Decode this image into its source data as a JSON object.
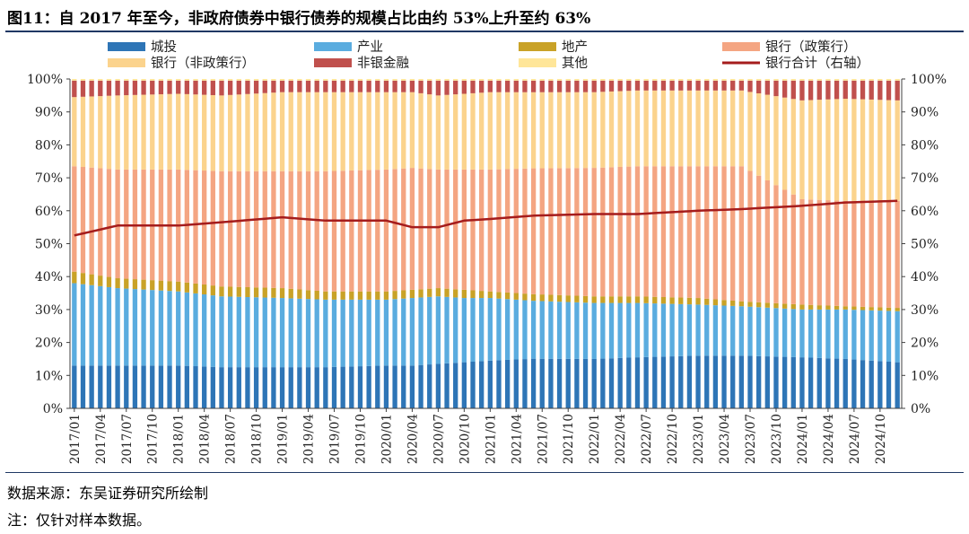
{
  "header": {
    "title": "图11：自 2017 年至今，非政府债券中银行债券的规模占比由约 53%上升至约 63%"
  },
  "footer": {
    "source": "数据来源：东吴证券研究所绘制",
    "note": "注：仅针对样本数据。"
  },
  "chart_data": {
    "type": "bar",
    "stacked": true,
    "x_start": "2017-01",
    "x_end": "2024-12",
    "x_tick_labels": [
      "2017/01",
      "2017/04",
      "2017/07",
      "2017/10",
      "2018/01",
      "2018/04",
      "2018/07",
      "2018/10",
      "2019/01",
      "2019/04",
      "2019/07",
      "2019/10",
      "2020/01",
      "2020/04",
      "2020/07",
      "2020/10",
      "2021/01",
      "2021/04",
      "2021/07",
      "2021/10",
      "2022/01",
      "2022/04",
      "2022/07",
      "2022/10",
      "2023/01",
      "2023/04",
      "2023/07",
      "2023/10",
      "2024/01",
      "2024/04",
      "2024/07",
      "2024/10"
    ],
    "y_left_ticks": [
      "0%",
      "10%",
      "20%",
      "30%",
      "40%",
      "50%",
      "60%",
      "70%",
      "80%",
      "90%",
      "100%"
    ],
    "y_right_ticks": [
      "0%",
      "10%",
      "20%",
      "30%",
      "40%",
      "50%",
      "60%",
      "70%",
      "80%",
      "90%",
      "100%"
    ],
    "ylim": [
      0,
      100
    ],
    "legend_position": "top",
    "series": [
      {
        "name": "城投",
        "color": "#2e75b6",
        "kind": "bar"
      },
      {
        "name": "产业",
        "color": "#5aacdf",
        "kind": "bar"
      },
      {
        "name": "地产",
        "color": "#c9a227",
        "kind": "bar"
      },
      {
        "name": "银行（政策行）",
        "color": "#f4a582",
        "kind": "bar"
      },
      {
        "name": "银行（非政策行）",
        "color": "#fbd38d",
        "kind": "bar"
      },
      {
        "name": "非银金融",
        "color": "#c0504d",
        "kind": "bar"
      },
      {
        "name": "其他",
        "color": "#ffe699",
        "kind": "bar"
      },
      {
        "name": "银行合计（右轴）",
        "color": "#a51c1c",
        "kind": "line",
        "axis": "right"
      }
    ],
    "keyframes": {
      "points": [
        "2017-01",
        "2017-06",
        "2018-01",
        "2018-06",
        "2019-01",
        "2019-06",
        "2020-01",
        "2020-04",
        "2020-07",
        "2020-10",
        "2021-01",
        "2021-06",
        "2022-01",
        "2022-06",
        "2023-01",
        "2023-06",
        "2024-01",
        "2024-06",
        "2024-12"
      ],
      "城投": [
        13,
        13,
        13,
        12.5,
        12.5,
        12.5,
        13,
        13,
        13.5,
        14,
        14.5,
        15,
        15,
        15.5,
        16,
        16,
        15.5,
        15,
        14
      ],
      "产业": [
        25,
        23.5,
        22.5,
        21.5,
        21,
        20.5,
        20,
        20.5,
        20.5,
        19.5,
        19,
        17.5,
        17,
        16.5,
        15.5,
        15,
        14.5,
        15,
        15.5
      ],
      "地产": [
        3.5,
        3,
        3,
        3,
        3,
        2.5,
        2.5,
        2.5,
        2.5,
        2.5,
        2,
        2,
        2,
        2,
        2,
        1.5,
        1.5,
        1,
        1
      ],
      "银行（政策行）": [
        32,
        33,
        34,
        35,
        35.5,
        36.5,
        37,
        37,
        36,
        36.5,
        37,
        38,
        39,
        39.5,
        40,
        41,
        32,
        32,
        32.5
      ],
      "银行（非政策行）": [
        21,
        22.5,
        23,
        23,
        24,
        24,
        23.5,
        23,
        22.5,
        23,
        23.5,
        23,
        23,
        23,
        23,
        23,
        30,
        31,
        30.5
      ],
      "非银金融": [
        5,
        4.5,
        4,
        4.5,
        3.5,
        3.5,
        3.5,
        3.5,
        4.5,
        4,
        3.5,
        3.5,
        3.5,
        3,
        3,
        3,
        6,
        5.5,
        6
      ],
      "其他": [
        0.5,
        0.5,
        0.5,
        0.5,
        0.5,
        0.5,
        0.5,
        0.5,
        0.5,
        0.5,
        0.5,
        0.5,
        0.5,
        0.5,
        0.5,
        0.5,
        0.5,
        0.5,
        0.5
      ],
      "银行合计（右轴）": [
        52.5,
        55.5,
        55.5,
        56.5,
        58,
        57,
        57,
        55,
        55,
        57,
        57.5,
        58.5,
        59,
        59,
        60,
        60.5,
        61.5,
        62.5,
        63
      ]
    }
  }
}
